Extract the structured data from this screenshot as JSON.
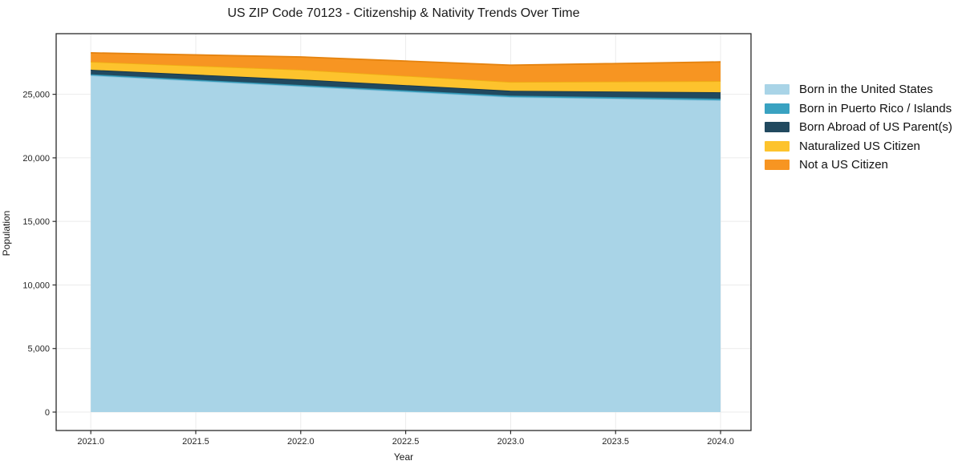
{
  "chart_data": {
    "type": "area",
    "stacked": true,
    "title": "US ZIP Code 70123 - Citizenship & Nativity Trends Over Time",
    "xlabel": "Year",
    "ylabel": "Population",
    "x": [
      2021,
      2022,
      2023,
      2024
    ],
    "series": [
      {
        "name": "Born in the United States",
        "color": "#A9D4E7",
        "edge": "#8FC3DC",
        "values": [
          26480,
          25630,
          24780,
          24530
        ]
      },
      {
        "name": "Born in Puerto Rico / Islands",
        "color": "#39A2C1",
        "edge": "#2E8CA8",
        "values": [
          100,
          100,
          120,
          130
        ]
      },
      {
        "name": "Born Abroad of US Parent(s)",
        "color": "#21495F",
        "edge": "#173649",
        "values": [
          350,
          440,
          380,
          500
        ]
      },
      {
        "name": "Naturalized US Citizen",
        "color": "#FDC32D",
        "edge": "#EFAE14",
        "values": [
          630,
          760,
          690,
          880
        ]
      },
      {
        "name": "Not a US Citizen",
        "color": "#F79522",
        "edge": "#E5830F",
        "values": [
          700,
          1010,
          1320,
          1510
        ]
      }
    ],
    "totals": [
      28260,
      27940,
      27290,
      27550
    ],
    "x_tick_values": [
      2021.0,
      2021.5,
      2022.0,
      2022.5,
      2023.0,
      2023.5,
      2024.0
    ],
    "x_tick_labels": [
      "2021.0",
      "2021.5",
      "2022.0",
      "2022.5",
      "2023.0",
      "2023.5",
      "2024.0"
    ],
    "y_tick_values": [
      0,
      5000,
      10000,
      15000,
      20000,
      25000
    ],
    "y_tick_labels": [
      "0",
      "5,000",
      "10,000",
      "15,000",
      "20,000",
      "25,000"
    ],
    "xlim": [
      2020.835,
      2024.145
    ],
    "ylim": [
      -1450,
      29770
    ],
    "grid": true,
    "grid_color": "#ebebeb",
    "spine_color": "#2a2a2a",
    "legend_position": "right"
  }
}
